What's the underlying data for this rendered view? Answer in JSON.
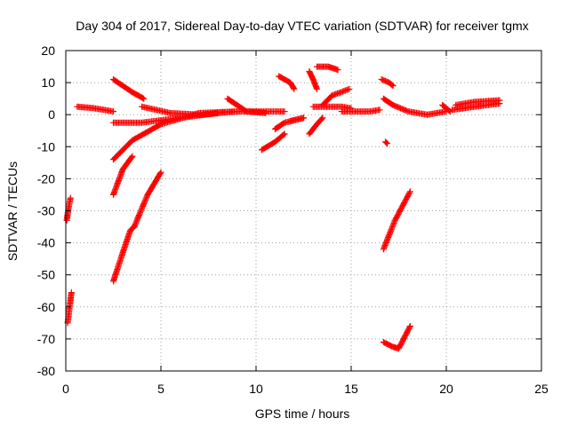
{
  "chart_data": {
    "type": "scatter",
    "title": "Day 304 of 2017, Sidereal Day-to-day VTEC variation (SDTVAR) for receiver tgmx",
    "xlabel": "GPS time / hours",
    "ylabel": "SDTVAR / TECUs",
    "xlim": [
      0,
      25
    ],
    "ylim": [
      -80,
      20
    ],
    "xticks": [
      "0",
      "5",
      "10",
      "15",
      "20",
      "25"
    ],
    "yticks": [
      "-80",
      "-70",
      "-60",
      "-50",
      "-40",
      "-30",
      "-20",
      "-10",
      "0",
      "10",
      "20"
    ],
    "xtick_values": [
      0,
      5,
      10,
      15,
      20,
      25
    ],
    "ytick_values": [
      -80,
      -70,
      -60,
      -50,
      -40,
      -30,
      -20,
      -10,
      0,
      10,
      20
    ],
    "grid": true,
    "marker": "+",
    "color": "#ff0000",
    "series": [
      {
        "segments": [
          [
            [
              0.1,
              -65
            ],
            [
              0.2,
              -60
            ],
            [
              0.3,
              -55.5
            ]
          ],
          [
            [
              0.05,
              -33
            ],
            [
              0.15,
              -29
            ],
            [
              0.25,
              -26
            ]
          ],
          [
            [
              0.6,
              2.5
            ],
            [
              1.5,
              2
            ],
            [
              2.5,
              1
            ]
          ],
          [
            [
              2.5,
              11
            ],
            [
              3.5,
              7
            ],
            [
              4.1,
              5
            ]
          ],
          [
            [
              2.5,
              -25
            ],
            [
              3,
              -17
            ],
            [
              3.5,
              -13
            ]
          ],
          [
            [
              2.5,
              -14
            ],
            [
              3.5,
              -8
            ],
            [
              5,
              -3
            ],
            [
              7,
              0.5
            ],
            [
              9,
              1
            ]
          ],
          [
            [
              2.5,
              -52
            ],
            [
              3,
              -43
            ],
            [
              3.4,
              -36
            ],
            [
              3.6,
              -35
            ],
            [
              4.3,
              -25
            ],
            [
              5,
              -18
            ]
          ],
          [
            [
              2.5,
              -2.5
            ],
            [
              4,
              -2.5
            ],
            [
              6,
              -1
            ],
            [
              8,
              0.5
            ]
          ],
          [
            [
              4,
              2.5
            ],
            [
              5.5,
              0.5
            ],
            [
              7,
              0
            ],
            [
              9,
              1
            ],
            [
              11.5,
              1
            ]
          ],
          [
            [
              8.5,
              5
            ],
            [
              9.5,
              1
            ],
            [
              10.5,
              0.5
            ]
          ],
          [
            [
              10.3,
              -11
            ],
            [
              11,
              -8.5
            ],
            [
              11.5,
              -6
            ]
          ],
          [
            [
              11.2,
              12
            ],
            [
              11.8,
              10
            ],
            [
              12,
              8
            ]
          ],
          [
            [
              11.8,
              -2
            ],
            [
              12.5,
              -1
            ]
          ],
          [
            [
              11,
              -4.5
            ],
            [
              11.5,
              -2.5
            ],
            [
              12.5,
              -1
            ]
          ],
          [
            [
              12.8,
              13.5
            ],
            [
              13,
              11
            ],
            [
              13.2,
              8
            ]
          ],
          [
            [
              12.8,
              -6
            ],
            [
              13.2,
              -3
            ],
            [
              13.5,
              -1
            ]
          ],
          [
            [
              13.2,
              15
            ],
            [
              13.8,
              15
            ],
            [
              14.3,
              14
            ]
          ],
          [
            [
              13.5,
              3
            ],
            [
              14,
              6
            ],
            [
              14.9,
              8
            ]
          ],
          [
            [
              13,
              2.5
            ],
            [
              14.5,
              2.5
            ],
            [
              15,
              2
            ]
          ],
          [
            [
              14.5,
              1
            ],
            [
              16,
              1
            ],
            [
              16.5,
              1.5
            ]
          ],
          [
            [
              16.6,
              11
            ],
            [
              17,
              10
            ],
            [
              17.2,
              9
            ]
          ],
          [
            [
              16.8,
              -8.5
            ],
            [
              16.9,
              -9
            ]
          ],
          [
            [
              16.7,
              5
            ],
            [
              17.2,
              3
            ],
            [
              18,
              1
            ],
            [
              19,
              0
            ],
            [
              20,
              1
            ]
          ],
          [
            [
              16.7,
              -42
            ],
            [
              17.3,
              -33
            ],
            [
              18.1,
              -24
            ]
          ],
          [
            [
              16.7,
              -71
            ],
            [
              17.2,
              -72.5
            ],
            [
              17.5,
              -73
            ],
            [
              18.1,
              -66
            ]
          ],
          [
            [
              19.8,
              3
            ],
            [
              20,
              2
            ],
            [
              20.2,
              1
            ]
          ],
          [
            [
              20.3,
              1.5
            ],
            [
              21.5,
              2.5
            ],
            [
              22.8,
              3.5
            ]
          ],
          [
            [
              20.5,
              3
            ],
            [
              21.5,
              4
            ],
            [
              22.8,
              4.5
            ]
          ]
        ]
      }
    ]
  }
}
